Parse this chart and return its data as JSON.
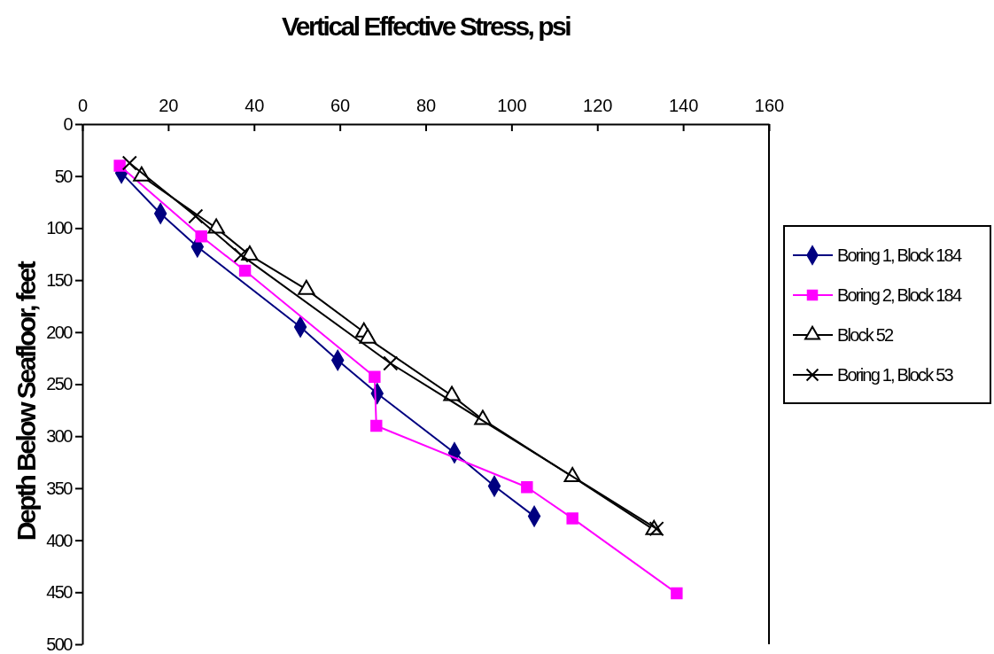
{
  "chart_data": {
    "type": "line",
    "xlabel": "Vertical Effective Stress, psi",
    "ylabel": "Depth Below Seafloor, feet",
    "xlim": [
      0,
      160
    ],
    "xticks": [
      0,
      20,
      40,
      60,
      80,
      100,
      120,
      140,
      160
    ],
    "ylim": [
      500,
      0
    ],
    "yticks": [
      0,
      50,
      100,
      150,
      200,
      250,
      300,
      350,
      400,
      450,
      500
    ],
    "grid": false,
    "legend": "right",
    "line_style": "solid",
    "series": [
      {
        "name": "Boring 1, Block 184",
        "color": "#000080",
        "marker": "diamond",
        "x": [
          9.1,
          18.2,
          26.8,
          50.8,
          59.5,
          68.7,
          86.7,
          96,
          105.3
        ],
        "values": [
          47,
          86,
          118,
          195,
          227,
          259,
          316,
          348,
          377
        ]
      },
      {
        "name": "Boring 2, Block 184",
        "color": "#ff00ff",
        "marker": "square",
        "x": [
          8.7,
          27.7,
          37.9,
          68.1,
          68.5,
          103.6,
          114.2,
          138.5
        ],
        "values": [
          40,
          108,
          141,
          243,
          290,
          349,
          379,
          451
        ]
      },
      {
        "name": "Block 52",
        "color": "#000000",
        "marker": "triangle",
        "x": [
          13.8,
          31.2,
          39,
          52.2,
          65.6,
          66.5,
          86.1,
          93.3,
          114.2,
          133.2
        ],
        "values": [
          50,
          100,
          126,
          159,
          200,
          206,
          261,
          284,
          339,
          390
        ]
      },
      {
        "name": "Boring 1, Block 53",
        "color": "#000000",
        "marker": "cross",
        "x": [
          11,
          26.4,
          37,
          71.8,
          133.8
        ],
        "values": [
          37.5,
          88.6,
          126,
          230,
          389
        ]
      }
    ]
  }
}
